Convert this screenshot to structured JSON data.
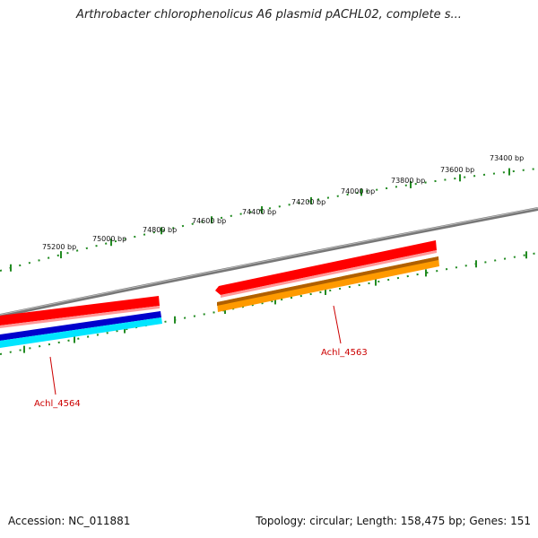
{
  "title": "Arthrobacter chlorophenolicus A6 plasmid pACHL02, complete s...",
  "footer": {
    "accession": "Accession: NC_011881",
    "topology": "Topology: circular; Length: 158,475 bp; Genes: 151"
  },
  "ruler": {
    "labels": [
      "75200 bp",
      "75000 bp",
      "74800 bp",
      "74600 bp",
      "74400 bp",
      "74200 bp",
      "74000 bp",
      "73800 bp",
      "73600 bp",
      "73400 bp"
    ]
  },
  "genes": [
    {
      "name": "Achl_4564"
    },
    {
      "name": "Achl_4563"
    }
  ],
  "colors": {
    "backbone": "#888888",
    "ruler": "#228b22",
    "cds_forward": "#ff0000",
    "cds_light": "#ff9999",
    "gene_dark_blue": "#0000cc",
    "gene_cyan": "#00e5ff",
    "gene_orange": "#ff9a00",
    "gene_orange_dark": "#b06000",
    "label": "#cc0000"
  }
}
